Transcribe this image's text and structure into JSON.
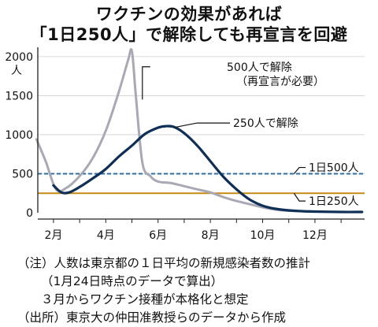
{
  "title_line1": "ワクチンの効果があれば",
  "title_line2": "「1日250人」で解除しても再宣言を回避",
  "notes": {
    "note1": "（注）人数は東京都の１日平均の新規感染者数の推計",
    "note2": "（1月24日時点のデータで算出）",
    "note3": "３月からワクチン接種が本格化と想定",
    "source": "（出所）東京大の仲田准教授らのデータから作成"
  },
  "colors": {
    "gray_series": "#a9a9b6",
    "navy_series": "#0f2f57",
    "dashed_line": "#2f6fa3",
    "orange_line": "#c48a14",
    "axis": "#222222"
  },
  "chart_data": {
    "type": "line",
    "title": "",
    "xlabel": "",
    "ylabel": "人",
    "xlim": [
      1.4,
      13.9
    ],
    "ylim": [
      0,
      2100
    ],
    "yticks": [
      0,
      500,
      1000,
      1500,
      2000
    ],
    "ytick_labels": [
      "0",
      "500",
      "1000",
      "1500",
      "2000"
    ],
    "xticks": [
      2,
      4,
      6,
      8,
      10,
      12
    ],
    "xtick_labels": [
      "2月",
      "4月",
      "6月",
      "8月",
      "10月",
      "12月"
    ],
    "series": [
      {
        "name": "500人で解除（再宣言が必要）",
        "color": "#a9a9b6",
        "x": [
          1.35,
          1.7,
          2.1,
          2.5,
          3.0,
          3.5,
          4.0,
          4.5,
          4.85,
          5.0,
          5.15,
          5.4,
          5.7,
          6.0,
          6.5,
          7.0,
          7.5,
          8.0,
          8.5,
          9.0,
          9.5,
          10.0,
          10.5,
          11.0,
          12.0,
          13.0,
          13.8
        ],
        "y": [
          940,
          660,
          300,
          320,
          470,
          700,
          1050,
          1550,
          1950,
          2070,
          1500,
          640,
          470,
          400,
          380,
          340,
          300,
          260,
          200,
          150,
          110,
          70,
          40,
          25,
          15,
          10,
          10
        ]
      },
      {
        "name": "250人で解除",
        "color": "#0f2f57",
        "x": [
          2.0,
          2.3,
          2.6,
          3.0,
          3.5,
          4.0,
          4.5,
          5.0,
          5.5,
          6.0,
          6.3,
          6.6,
          7.0,
          7.5,
          8.0,
          8.5,
          9.0,
          9.5,
          10.0,
          10.5,
          11.0,
          11.5,
          12.0,
          13.0,
          13.8
        ],
        "y": [
          350,
          260,
          260,
          330,
          440,
          560,
          720,
          860,
          1010,
          1090,
          1110,
          1100,
          1020,
          860,
          660,
          460,
          300,
          170,
          90,
          50,
          30,
          20,
          15,
          10,
          10
        ]
      }
    ],
    "reference_lines": [
      {
        "label": "1日500人",
        "value": 500,
        "color": "#2f6fa3",
        "style": "dashed"
      },
      {
        "label": "1日250人",
        "value": 250,
        "color": "#c48a14",
        "style": "solid"
      }
    ],
    "annotations": [
      {
        "text": "500人で解除",
        "target": "500人で解除（再宣言が必要）"
      },
      {
        "text": "（再宣言が必要）",
        "target": "500人で解除（再宣言が必要）"
      },
      {
        "text": "250人で解除",
        "target": "250人で解除"
      },
      {
        "text": "1日500人",
        "target": "1日500人"
      },
      {
        "text": "1日250人",
        "target": "1日250人"
      }
    ]
  }
}
